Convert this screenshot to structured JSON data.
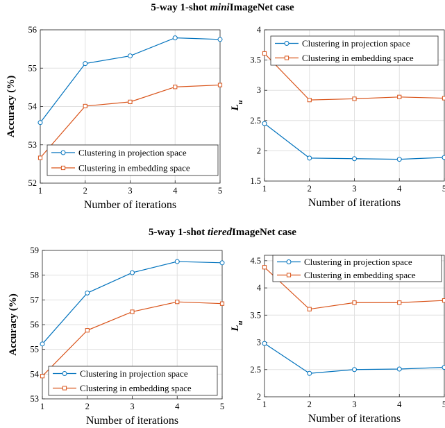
{
  "rows": [
    {
      "title_prefix": "5-way 1-shot ",
      "title_em": "mini",
      "title_suffix": "ImageNet case"
    },
    {
      "title_prefix": "5-way 1-shot ",
      "title_em": "tiered",
      "title_suffix": "ImageNet case"
    }
  ],
  "colors": {
    "projection": "#0072BD",
    "embedding": "#D95319"
  },
  "chart_data": [
    {
      "type": "line",
      "x": [
        1,
        2,
        3,
        4,
        5
      ],
      "xlabel": "Number of iterations",
      "ylabel": "Accuracy (%)",
      "xlim": [
        1,
        5
      ],
      "ylim": [
        52,
        56
      ],
      "yticks": [
        52,
        53,
        54,
        55,
        56
      ],
      "grid": true,
      "legend_position": "bottom-right",
      "series": [
        {
          "name": "Clustering in projection space",
          "marker": "circle",
          "values": [
            53.58,
            55.12,
            55.32,
            55.79,
            55.75
          ]
        },
        {
          "name": "Clustering in embedding space",
          "marker": "square",
          "values": [
            52.66,
            54.01,
            54.12,
            54.51,
            54.56
          ]
        }
      ]
    },
    {
      "type": "line",
      "x": [
        1,
        2,
        3,
        4,
        5
      ],
      "xlabel": "Number of iterations",
      "ylabel": "L_u",
      "xlim": [
        1,
        5
      ],
      "ylim": [
        1.5,
        4
      ],
      "yticks": [
        1.5,
        2,
        2.5,
        3,
        3.5,
        4
      ],
      "grid": true,
      "legend_position": "top-right",
      "series": [
        {
          "name": "Clustering in projection space",
          "marker": "circle",
          "values": [
            2.45,
            1.88,
            1.87,
            1.86,
            1.89
          ]
        },
        {
          "name": "Clustering in embedding space",
          "marker": "square",
          "values": [
            3.61,
            2.84,
            2.86,
            2.89,
            2.87
          ]
        }
      ]
    },
    {
      "type": "line",
      "x": [
        1,
        2,
        3,
        4,
        5
      ],
      "xlabel": "Number of iterations",
      "ylabel": "Accuracy (%)",
      "xlim": [
        1,
        5
      ],
      "ylim": [
        53,
        59
      ],
      "yticks": [
        53,
        54,
        55,
        56,
        57,
        58,
        59
      ],
      "grid": true,
      "legend_position": "bottom-right",
      "series": [
        {
          "name": "Clustering in projection space",
          "marker": "circle",
          "values": [
            55.22,
            57.28,
            58.1,
            58.55,
            58.5
          ]
        },
        {
          "name": "Clustering in embedding space",
          "marker": "square",
          "values": [
            53.92,
            55.77,
            56.52,
            56.92,
            56.85
          ]
        }
      ]
    },
    {
      "type": "line",
      "x": [
        1,
        2,
        3,
        4,
        5
      ],
      "xlabel": "Number of iterations",
      "ylabel": "L_u",
      "xlim": [
        1,
        5
      ],
      "ylim": [
        2,
        4.6
      ],
      "yticks": [
        2,
        2.5,
        3,
        3.5,
        4,
        4.5
      ],
      "grid": true,
      "legend_position": "top-right",
      "series": [
        {
          "name": "Clustering in projection space",
          "marker": "circle",
          "values": [
            2.98,
            2.43,
            2.5,
            2.51,
            2.54
          ]
        },
        {
          "name": "Clustering in embedding space",
          "marker": "square",
          "values": [
            4.38,
            3.61,
            3.73,
            3.73,
            3.77
          ]
        }
      ]
    }
  ]
}
